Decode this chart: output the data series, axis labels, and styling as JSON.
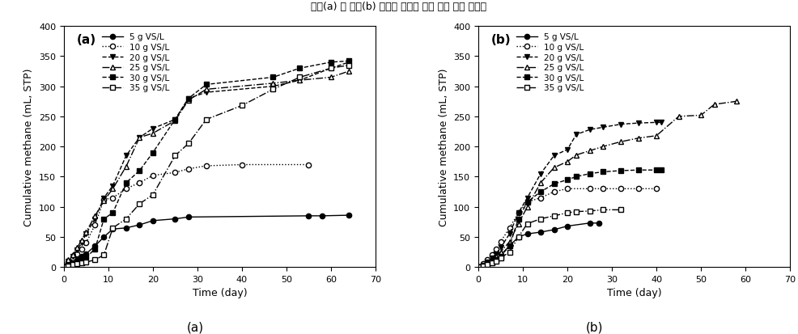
{
  "panel_a": {
    "series": [
      {
        "label": "5 g VS/L",
        "linestyle": "-",
        "marker": "o",
        "fillstyle": "full",
        "x": [
          0,
          1,
          2,
          3,
          4,
          5,
          7,
          9,
          11,
          14,
          17,
          20,
          25,
          28,
          55,
          58,
          64
        ],
        "y": [
          0,
          5,
          10,
          14,
          18,
          22,
          35,
          50,
          63,
          65,
          70,
          77,
          80,
          83,
          85,
          85,
          86
        ]
      },
      {
        "label": "10 g VS/L",
        "linestyle": ":",
        "marker": "o",
        "fillstyle": "none",
        "x": [
          0,
          1,
          2,
          3,
          4,
          5,
          7,
          9,
          11,
          14,
          17,
          20,
          25,
          28,
          32,
          40,
          55
        ],
        "y": [
          0,
          8,
          15,
          22,
          30,
          40,
          70,
          112,
          115,
          130,
          140,
          152,
          157,
          163,
          168,
          170,
          170
        ]
      },
      {
        "label": "20 g VS/L",
        "linestyle": "--",
        "marker": "v",
        "fillstyle": "full",
        "x": [
          0,
          1,
          2,
          3,
          4,
          5,
          7,
          9,
          11,
          14,
          17,
          20,
          25,
          28,
          32,
          47,
          53,
          60,
          64
        ],
        "y": [
          0,
          10,
          18,
          28,
          40,
          55,
          80,
          115,
          135,
          185,
          215,
          230,
          245,
          280,
          290,
          300,
          310,
          330,
          340
        ]
      },
      {
        "label": "25 g VS/L",
        "linestyle": "-.",
        "marker": "^",
        "fillstyle": "none",
        "x": [
          0,
          1,
          2,
          3,
          4,
          5,
          7,
          9,
          11,
          14,
          17,
          20,
          25,
          28,
          32,
          47,
          53,
          60,
          64
        ],
        "y": [
          0,
          12,
          20,
          32,
          45,
          58,
          85,
          110,
          130,
          167,
          215,
          222,
          243,
          277,
          295,
          305,
          310,
          315,
          325
        ]
      },
      {
        "label": "30 g VS/L",
        "linestyle": "--",
        "marker": "s",
        "fillstyle": "full",
        "x": [
          0,
          1,
          2,
          3,
          4,
          5,
          7,
          9,
          11,
          14,
          17,
          20,
          25,
          28,
          32,
          47,
          53,
          60,
          64
        ],
        "y": [
          0,
          3,
          7,
          10,
          13,
          16,
          30,
          80,
          90,
          140,
          160,
          190,
          245,
          280,
          303,
          315,
          330,
          340,
          342
        ]
      },
      {
        "label": "35 g VS/L",
        "linestyle": "-.",
        "marker": "s",
        "fillstyle": "none",
        "x": [
          0,
          1,
          2,
          3,
          4,
          5,
          7,
          9,
          11,
          14,
          17,
          20,
          25,
          28,
          32,
          40,
          47,
          53,
          60,
          64
        ],
        "y": [
          0,
          2,
          4,
          5,
          7,
          8,
          12,
          20,
          65,
          80,
          105,
          120,
          185,
          205,
          245,
          268,
          295,
          315,
          330,
          335
        ]
      }
    ],
    "xlabel": "Time (day)",
    "ylabel": "Cumulative methane (mL, STP)",
    "xlim": [
      0,
      70
    ],
    "ylim": [
      0,
      400
    ],
    "xticks": [
      0,
      10,
      20,
      30,
      40,
      50,
      60,
      70
    ],
    "yticks": [
      0,
      50,
      100,
      150,
      200,
      250,
      300,
      350,
      400
    ],
    "panel_label": "(a)"
  },
  "panel_b": {
    "series": [
      {
        "label": "5 g VS/L",
        "linestyle": "-",
        "marker": "o",
        "fillstyle": "full",
        "x": [
          0,
          1,
          2,
          3,
          4,
          5,
          7,
          9,
          11,
          14,
          17,
          20,
          25,
          27
        ],
        "y": [
          0,
          2,
          5,
          8,
          13,
          20,
          35,
          50,
          55,
          58,
          62,
          68,
          73,
          73
        ]
      },
      {
        "label": "10 g VS/L",
        "linestyle": ":",
        "marker": "o",
        "fillstyle": "none",
        "x": [
          0,
          1,
          2,
          3,
          4,
          5,
          7,
          9,
          11,
          14,
          17,
          20,
          25,
          28,
          32,
          36,
          40
        ],
        "y": [
          0,
          5,
          12,
          20,
          30,
          42,
          65,
          90,
          108,
          115,
          125,
          130,
          130,
          130,
          130,
          130,
          130
        ]
      },
      {
        "label": "20 g VS/L",
        "linestyle": "--",
        "marker": "v",
        "fillstyle": "full",
        "x": [
          0,
          1,
          2,
          3,
          4,
          5,
          7,
          9,
          11,
          14,
          17,
          20,
          22,
          25,
          28,
          32,
          36,
          40,
          41
        ],
        "y": [
          0,
          3,
          8,
          15,
          22,
          32,
          55,
          90,
          115,
          155,
          185,
          195,
          220,
          228,
          232,
          237,
          239,
          240,
          240
        ]
      },
      {
        "label": "25 g VS/L",
        "linestyle": "-.",
        "marker": "^",
        "fillstyle": "none",
        "x": [
          0,
          1,
          2,
          3,
          4,
          5,
          7,
          9,
          11,
          14,
          17,
          20,
          22,
          25,
          28,
          32,
          36,
          40,
          45,
          50,
          53,
          58
        ],
        "y": [
          0,
          2,
          5,
          10,
          18,
          25,
          42,
          72,
          100,
          140,
          165,
          175,
          186,
          193,
          200,
          208,
          214,
          218,
          250,
          252,
          270,
          275
        ]
      },
      {
        "label": "30 g VS/L",
        "linestyle": "--",
        "marker": "s",
        "fillstyle": "full",
        "x": [
          0,
          1,
          2,
          3,
          4,
          5,
          7,
          9,
          11,
          14,
          17,
          20,
          22,
          25,
          28,
          32,
          36,
          40,
          41
        ],
        "y": [
          0,
          2,
          5,
          8,
          12,
          18,
          35,
          80,
          108,
          125,
          138,
          145,
          150,
          155,
          158,
          160,
          161,
          161,
          161
        ]
      },
      {
        "label": "35 g VS/L",
        "linestyle": "-.",
        "marker": "s",
        "fillstyle": "none",
        "x": [
          0,
          1,
          2,
          3,
          4,
          5,
          7,
          9,
          11,
          14,
          17,
          20,
          22,
          25,
          28,
          32
        ],
        "y": [
          0,
          2,
          4,
          7,
          10,
          15,
          25,
          50,
          72,
          80,
          85,
          90,
          92,
          93,
          95,
          95
        ]
      }
    ],
    "xlabel": "Time (day)",
    "ylabel": "Cumulative methane (mL, STP)",
    "xlim": [
      0,
      70
    ],
    "ylim": [
      0,
      400
    ],
    "xticks": [
      0,
      10,
      20,
      30,
      40,
      50,
      60,
      70
    ],
    "yticks": [
      0,
      50,
      100,
      150,
      200,
      250,
      300,
      350,
      400
    ],
    "panel_label": "(b)"
  },
  "suptitle": "발효(a) 및 당화(b) 부산물 농도에 따른 누적 메탄 생산량",
  "bottom_label_a": "(a)",
  "bottom_label_b": "(b)",
  "legend_labels": [
    "5 g VS/L",
    "10 g VS/L",
    "20 g VS/L",
    "25 g VS/L",
    "30 g VS/L",
    "35 g VS/L"
  ]
}
